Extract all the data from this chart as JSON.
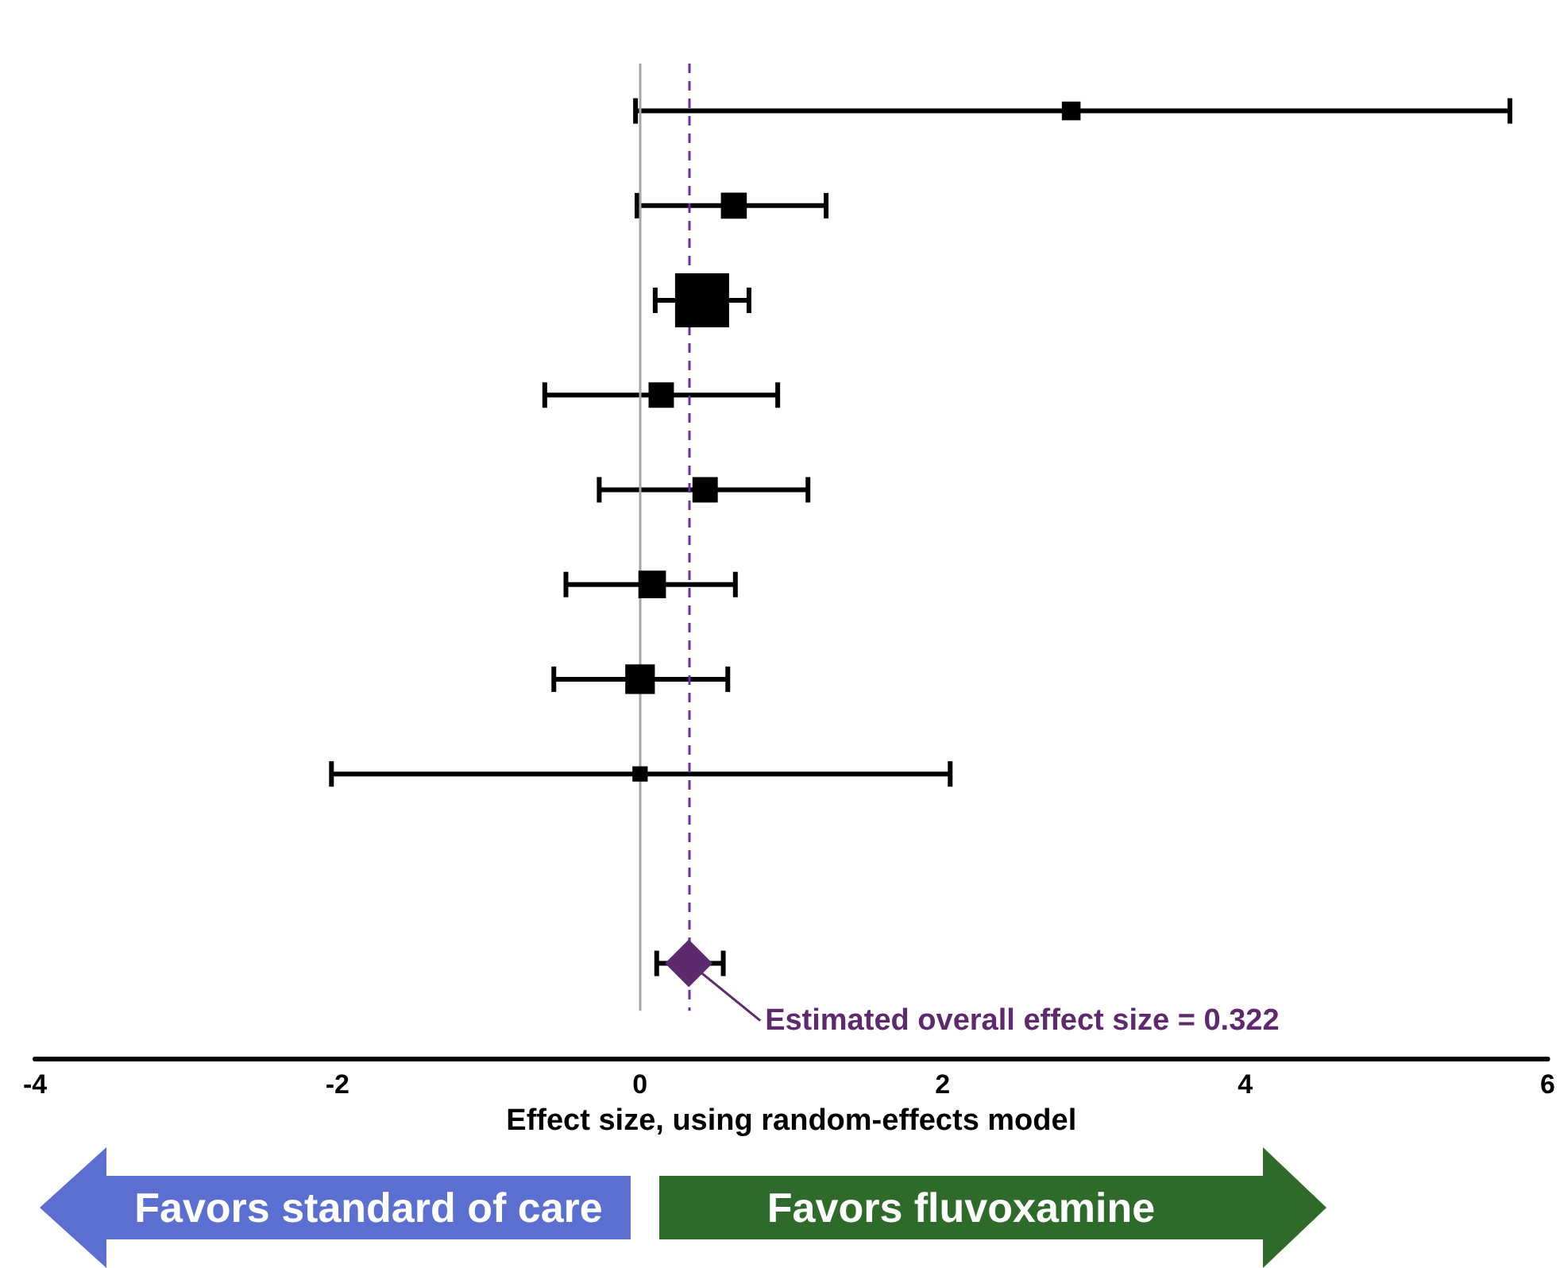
{
  "chart_data": {
    "type": "scatter",
    "orientation": "horizontal",
    "xlabel": "Effect size, using random-effects model",
    "categories": [
      null,
      null,
      null,
      null,
      null,
      null,
      null,
      null,
      null,
      null
    ],
    "series": [
      {
        "color": "#000000",
        "marker": "square",
        "values": [
          2.85,
          0.62,
          0.41,
          0.14,
          0.43,
          0.08,
          0.0,
          0.0,
          null,
          null
        ],
        "sizes": [
          0.12,
          0.23,
          1,
          0.22,
          0.22,
          0.26,
          0.3,
          0.08,
          null,
          null
        ],
        "errors": [
          [
            -0.03,
            5.75
          ],
          [
            -0.02,
            1.23
          ],
          [
            0.1,
            0.72
          ],
          [
            -0.63,
            0.91
          ],
          [
            -0.27,
            1.11
          ],
          [
            -0.49,
            0.63
          ],
          [
            -0.57,
            0.58
          ],
          [
            -2.04,
            2.05
          ],
          null,
          null
        ]
      },
      {
        "color": "#5e2a6e",
        "marker": "diamond",
        "values": [
          null,
          null,
          null,
          null,
          null,
          null,
          null,
          null,
          null,
          0.322
        ],
        "errors": [
          null,
          null,
          null,
          null,
          null,
          null,
          null,
          null,
          null,
          [
            0.11,
            0.55
          ]
        ]
      }
    ],
    "xlim": [
      -4,
      6
    ],
    "xticks": [
      -4,
      -2,
      0,
      2,
      4,
      6
    ],
    "tick_labels": "x",
    "grid": false,
    "ref_lines": [
      {
        "axis": "x",
        "value": 0,
        "color": "#a6a6a6",
        "line_style": "solid"
      },
      {
        "axis": "x",
        "value": 0.322,
        "color": "#7030a0",
        "line_style": "dashed"
      }
    ],
    "annotations": [
      "Estimated overall effect size = 0.322",
      "Favors standard of care",
      "Favors fluvoxamine"
    ]
  }
}
